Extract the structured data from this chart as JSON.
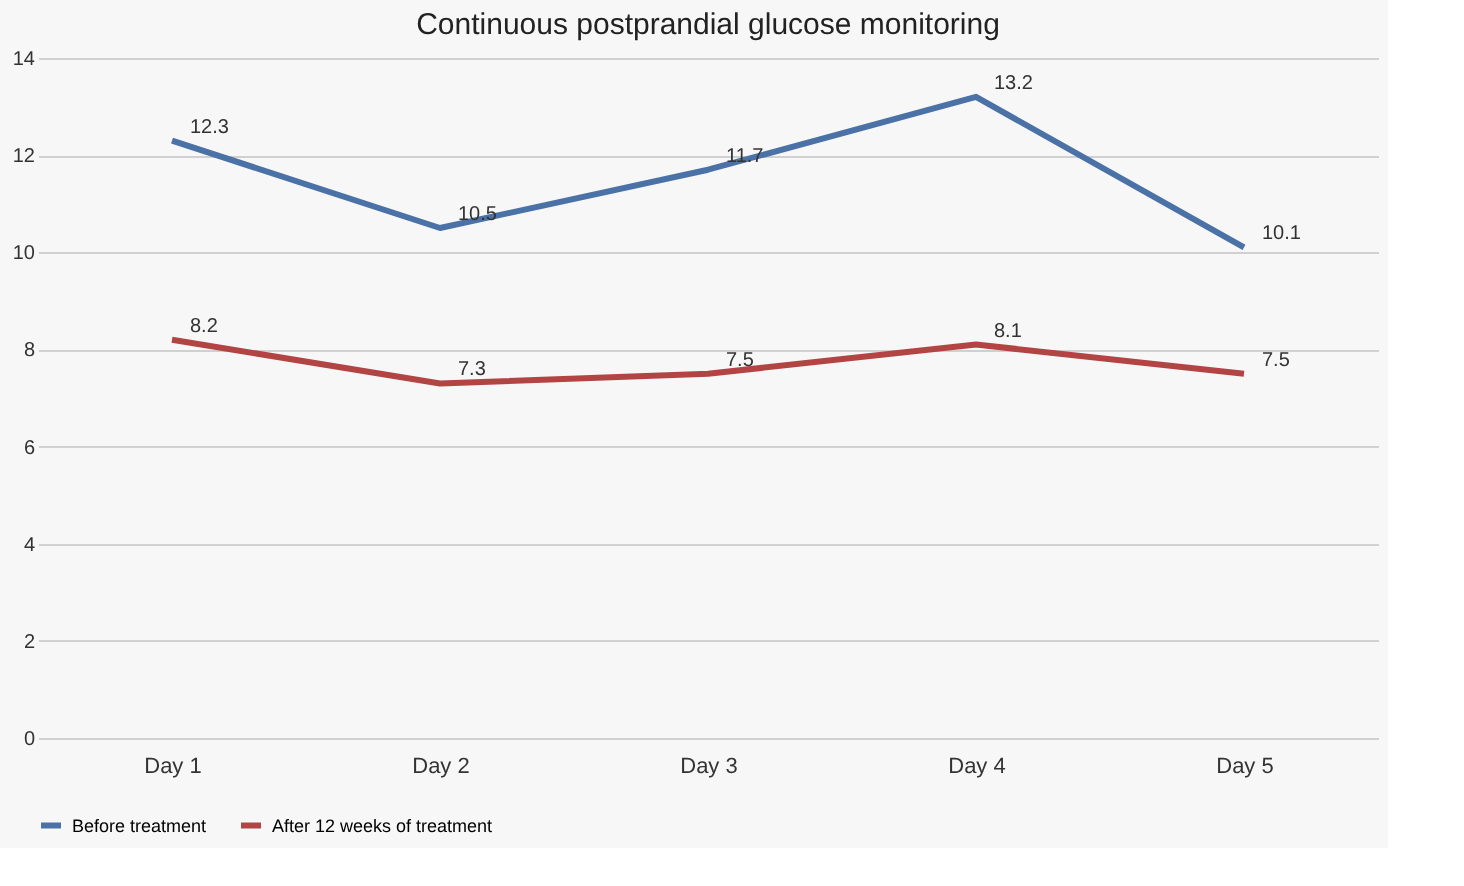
{
  "chart_data": {
    "type": "line",
    "title": "Continuous postprandial glucose monitoring",
    "categories": [
      "Day 1",
      "Day 2",
      "Day 3",
      "Day 4",
      "Day 5"
    ],
    "series": [
      {
        "name": "Before treatment",
        "color": "#4a72a6",
        "values": [
          12.3,
          10.5,
          11.7,
          13.2,
          10.1
        ]
      },
      {
        "name": "After 12 weeks of treatment",
        "color": "#b34444",
        "values": [
          8.2,
          7.3,
          7.5,
          8.1,
          7.5
        ]
      }
    ],
    "ylim": [
      0,
      14
    ],
    "yticks": [
      0,
      2,
      4,
      6,
      8,
      10,
      12,
      14
    ],
    "grid": "y",
    "legend": "bottom",
    "data_labels": true,
    "marker": "none",
    "line_style": "solid"
  }
}
